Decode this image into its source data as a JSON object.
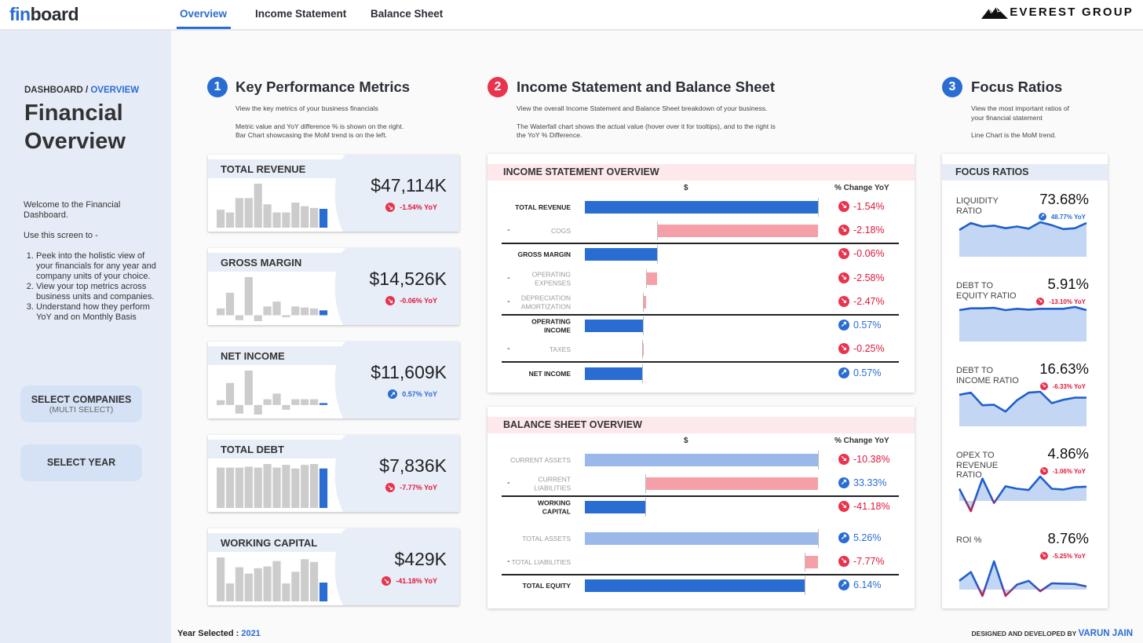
{
  "header": {
    "logo_a": "fin",
    "logo_b": "board",
    "tabs": [
      {
        "label": "Overview",
        "active": true
      },
      {
        "label": "Income Statement",
        "active": false
      },
      {
        "label": "Balance Sheet",
        "active": false
      }
    ],
    "brand": "EVEREST GROUP"
  },
  "sidebar": {
    "breadcrumb_root": "DASHBOARD",
    "breadcrumb_sep": " / ",
    "breadcrumb_current": "OVERVIEW",
    "title": "Financial Overview",
    "welcome": "Welcome to the Financial Dashboard.",
    "use_intro": "Use this screen to -",
    "steps": [
      "Peek into the holistic view of your financials for any year and company units of your choice.",
      "View your top metrics across business units and companies.",
      "Understand how they perform YoY and on Monthly Basis"
    ],
    "select_companies": "SELECT COMPANIES",
    "select_companies_sub": "(MULTI SELECT)",
    "select_year": "SELECT YEAR"
  },
  "sections": [
    {
      "num": "1",
      "title": "Key Performance Metrics",
      "desc": [
        "View the key metrics of your business financials",
        "Metric value and YoY difference % is shown on the right.",
        "Bar Chart showcasing the MoM trend is on the left."
      ],
      "color": "#2a6dd2"
    },
    {
      "num": "2",
      "title": "Income Statement and Balance Sheet",
      "desc": [
        "View the overall Income Statement and Balance Sheet breakdown of your business.",
        "The Waterfall chart shows the actual value (hover over it for tooltips), and to the right is",
        "the YoY % Difference."
      ],
      "color": "#e8344e"
    },
    {
      "num": "3",
      "title": "Focus Ratios",
      "desc": [
        "View the most important ratios of",
        "your financial statement",
        "Line Chart is the MoM trend."
      ],
      "color": "#2a6dd2"
    }
  ],
  "kpis": [
    {
      "title": "TOTAL REVENUE",
      "value": "$47,114K",
      "yoy": "-1.54% YoY",
      "dir": "down",
      "monthly": [
        20,
        17,
        33,
        33,
        49,
        26,
        17,
        17,
        28,
        24,
        22,
        21
      ]
    },
    {
      "title": "GROSS MARGIN",
      "value": "$14,526K",
      "yoy": "-0.06% YoY",
      "dir": "down",
      "monthly": [
        7,
        23,
        -5,
        39,
        -6,
        9,
        14,
        -2,
        9,
        8,
        7,
        5
      ]
    },
    {
      "title": "NET INCOME",
      "value": "$11,609K",
      "yoy": "0.57% YoY",
      "dir": "up",
      "monthly": [
        5,
        23,
        -9,
        36,
        -10,
        6,
        12,
        -5,
        6,
        6,
        6,
        2
      ]
    },
    {
      "title": "TOTAL DEBT",
      "value": "$7,836K",
      "yoy": "-7.77% YoY",
      "dir": "down",
      "monthly": [
        45,
        45,
        45,
        46,
        45,
        49,
        45,
        48,
        44,
        48,
        49,
        44
      ]
    },
    {
      "title": "WORKING CAPITAL",
      "value": "$429K",
      "yoy": "-41.18% YoY",
      "dir": "down",
      "monthly": [
        49,
        20,
        38,
        31,
        37,
        39,
        45,
        20,
        33,
        47,
        44,
        21
      ]
    }
  ],
  "income_statement": {
    "title": "INCOME STATEMENT OVERVIEW",
    "col_value": "$",
    "col_pct": "% Change YoY",
    "rows": [
      {
        "label": "TOTAL REVENUE",
        "kind": "total",
        "value": 47114,
        "pct": "-1.54%",
        "dir": "down",
        "divider_after": false
      },
      {
        "label": "COGS",
        "kind": "minus",
        "value": 32588,
        "pct": "-2.18%",
        "dir": "down",
        "divider_after": true
      },
      {
        "label": "GROSS MARGIN",
        "kind": "total",
        "value": 14526,
        "pct": "-0.06%",
        "dir": "down",
        "divider_after": false
      },
      {
        "label": "OPERATING EXPENSES",
        "kind": "minus",
        "value": 2200,
        "pct": "-2.58%",
        "dir": "down",
        "divider_after": false
      },
      {
        "label": "DEPRECIATION AMORTIZATION",
        "kind": "minus",
        "value": 650,
        "pct": "-2.47%",
        "dir": "down",
        "divider_after": true
      },
      {
        "label": "OPERATING INCOME",
        "kind": "total",
        "value": 11676,
        "pct": "0.57%",
        "dir": "up",
        "divider_after": false
      },
      {
        "label": "TAXES",
        "kind": "minus",
        "value": 67,
        "pct": "-0.25%",
        "dir": "down",
        "divider_after": true
      },
      {
        "label": "NET INCOME",
        "kind": "total",
        "value": 11609,
        "pct": "0.57%",
        "dir": "up",
        "divider_after": false
      }
    ]
  },
  "balance_sheet": {
    "title": "BALANCE SHEET OVERVIEW",
    "col_value": "$",
    "col_pct": "% Change YoY",
    "rows": [
      {
        "label": "CURRENT ASSETS",
        "kind": "asset",
        "value": 1655,
        "pct": "-10.38%",
        "dir": "down",
        "divider_after": false
      },
      {
        "label": "CURRENT LIABILITIES",
        "kind": "minus",
        "value": 1226,
        "pct": "33.33%",
        "dir": "up",
        "divider_after": true
      },
      {
        "label": "WORKING CAPITAL",
        "kind": "total",
        "value": 429,
        "pct": "-41.18%",
        "dir": "down",
        "divider_after": false
      },
      {
        "label": "TOTAL ASSETS",
        "kind": "asset",
        "value": 1655,
        "pct": "5.26%",
        "dir": "up",
        "divider_after": false
      },
      {
        "label": "TOTAL LIABILITIES",
        "kind": "minus",
        "value": 95,
        "pct": "-7.77%",
        "dir": "down",
        "divider_after": true
      },
      {
        "label": "TOTAL EQUITY",
        "kind": "total",
        "value": 1560,
        "pct": "6.14%",
        "dir": "up",
        "divider_after": false
      }
    ]
  },
  "focus_ratios": {
    "title": "FOCUS RATIOS",
    "items": [
      {
        "label": "LIQUIDITY RATIO",
        "value": "73.68%",
        "yoy": "48.77% YoY",
        "dir": "up",
        "trend": [
          62,
          78,
          70,
          72,
          66,
          70,
          65,
          80,
          73,
          64,
          66,
          78
        ]
      },
      {
        "label": "DEBT TO EQUITY RATIO",
        "value": "5.91%",
        "yoy": "-13.10% YoY",
        "dir": "down",
        "trend": [
          70,
          74,
          74,
          75,
          70,
          73,
          71,
          73,
          73,
          73,
          77,
          70
        ]
      },
      {
        "label": "DEBT TO INCOME RATIO",
        "value": "16.63%",
        "yoy": "-6.33% YoY",
        "dir": "down",
        "trend": [
          75,
          80,
          50,
          51,
          35,
          62,
          80,
          82,
          55,
          63,
          68,
          68
        ]
      },
      {
        "label": "OPEX TO REVENUE RATIO",
        "value": "4.86%",
        "yoy": "-1.06% YoY",
        "dir": "down",
        "trend": [
          30,
          -25,
          55,
          -5,
          36,
          30,
          27,
          60,
          30,
          28,
          34,
          35
        ]
      },
      {
        "label": "ROI %",
        "value": "8.76%",
        "yoy": "-5.25% YoY",
        "dir": "down",
        "trend": [
          28,
          56,
          -20,
          90,
          -20,
          16,
          28,
          -5,
          20,
          19,
          18,
          10
        ]
      }
    ]
  },
  "footer": {
    "year_label": "Year Selected : ",
    "year": "2021",
    "credit": "DESIGNED AND DEVELOPED BY ",
    "author": "VARUN JAIN"
  },
  "colors": {
    "accent": "#2a6dd2",
    "negative": "#e8344e",
    "minus_bar": "#f5a0a8",
    "asset_bar": "#9bb8ea",
    "kpi_bar": "#cccccc"
  }
}
